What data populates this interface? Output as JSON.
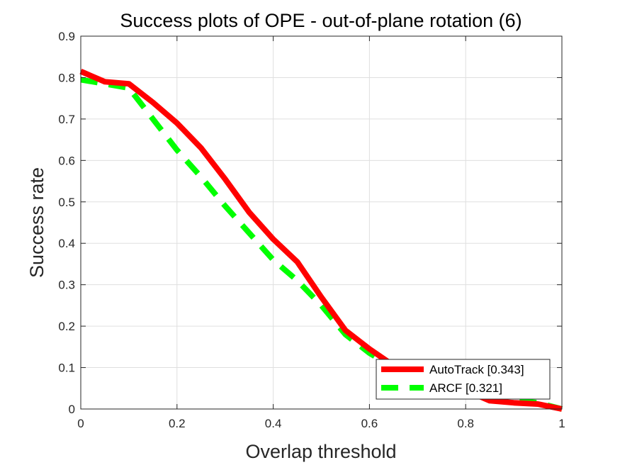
{
  "chart_data": {
    "type": "line",
    "title": "Success plots of OPE - out-of-plane rotation (6)",
    "xlabel": "Overlap threshold",
    "ylabel": "Success rate",
    "xlim": [
      0,
      1
    ],
    "ylim": [
      0,
      0.9
    ],
    "xticks": [
      0,
      0.2,
      0.4,
      0.6,
      0.8,
      1
    ],
    "xtick_labels": [
      "0",
      "0.2",
      "0.4",
      "0.6",
      "0.8",
      "1"
    ],
    "yticks": [
      0,
      0.1,
      0.2,
      0.3,
      0.4,
      0.5,
      0.6,
      0.7,
      0.8,
      0.9
    ],
    "ytick_labels": [
      "0",
      "0.1",
      "0.2",
      "0.3",
      "0.4",
      "0.5",
      "0.6",
      "0.7",
      "0.8",
      "0.9"
    ],
    "grid": true,
    "legend_position": "bottom-right",
    "x": [
      0,
      0.05,
      0.1,
      0.15,
      0.2,
      0.25,
      0.3,
      0.35,
      0.4,
      0.45,
      0.5,
      0.55,
      0.6,
      0.65,
      0.7,
      0.75,
      0.8,
      0.85,
      0.9,
      0.95,
      1
    ],
    "series": [
      {
        "name": "AutoTrack [0.343]",
        "color": "#ff0000",
        "style": "solid",
        "values": [
          0.815,
          0.79,
          0.785,
          0.74,
          0.69,
          0.63,
          0.555,
          0.475,
          0.41,
          0.355,
          0.27,
          0.19,
          0.145,
          0.105,
          0.08,
          0.06,
          0.045,
          0.02,
          0.015,
          0.012,
          0.0
        ]
      },
      {
        "name": "ARCF [0.321]",
        "color": "#00ff00",
        "style": "dashed",
        "values": [
          0.795,
          0.785,
          0.775,
          0.7,
          0.625,
          0.56,
          0.49,
          0.425,
          0.36,
          0.31,
          0.25,
          0.18,
          0.135,
          0.1,
          0.075,
          0.055,
          0.04,
          0.03,
          0.02,
          0.015,
          0.0
        ]
      }
    ]
  }
}
